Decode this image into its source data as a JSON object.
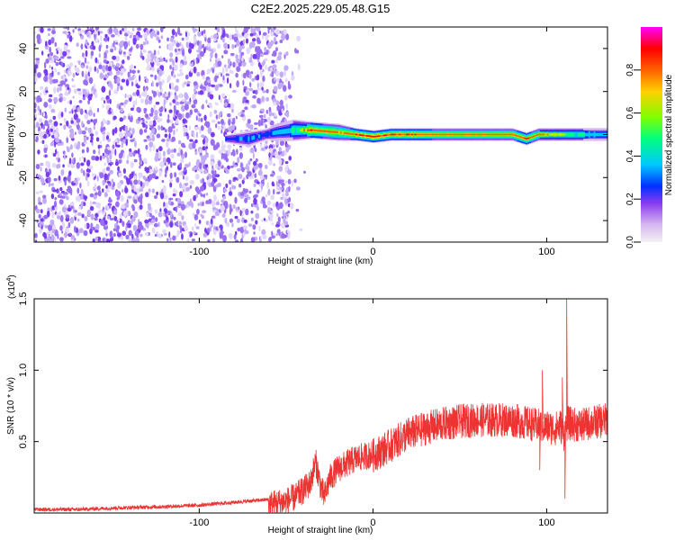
{
  "title": "C2E2.2025.229.05.48.G15",
  "colors": {
    "speckle": [
      "#7a3cf0",
      "#9a6ff2",
      "#c3acf6",
      "#e3d8fb"
    ],
    "signal_line": "#ee3333",
    "colormap": [
      "#f2f2f2",
      "#d6b8f0",
      "#8a3cf0",
      "#0030ff",
      "#00c8ff",
      "#00ff80",
      "#80ff00",
      "#ffd000",
      "#ff6000",
      "#ff0000",
      "#ff00ff"
    ]
  },
  "chart_data": [
    {
      "type": "heatmap",
      "title": "C2E2.2025.229.05.48.G15",
      "xlabel": "Height of straight line (km)",
      "ylabel": "Frequency (Hz)",
      "xlim": [
        -195,
        135
      ],
      "ylim": [
        -50,
        50
      ],
      "x_ticks": [
        -100,
        0,
        100
      ],
      "x_tick_labels": [
        "-100",
        "0",
        "100"
      ],
      "y_ticks": [
        -40,
        -20,
        0,
        20,
        40
      ],
      "y_tick_labels": [
        "-40",
        "-20",
        "0",
        "20",
        "40"
      ],
      "noise_region_x": [
        -195,
        -48
      ],
      "signal_band": {
        "x": [
          -85,
          -72,
          -62,
          -56,
          -46,
          -35,
          -20,
          -10,
          0,
          10,
          20,
          40,
          60,
          80,
          88,
          95,
          105,
          120,
          135
        ],
        "center_hz": [
          -2,
          -2,
          0,
          1,
          2,
          2,
          1,
          0,
          -1,
          0,
          0,
          0,
          0,
          0,
          -2,
          0,
          0,
          0,
          0
        ],
        "halfwidth_hz": [
          2,
          4,
          3,
          4,
          5,
          4,
          4,
          3,
          3,
          3,
          3,
          3,
          3,
          3,
          3,
          3,
          3,
          3,
          3
        ],
        "peak_amplitude": [
          0.4,
          0.45,
          0.4,
          0.5,
          0.6,
          0.9,
          0.8,
          0.9,
          0.95,
          0.9,
          0.9,
          0.85,
          0.85,
          0.85,
          0.9,
          0.8,
          0.75,
          0.6,
          0.5
        ]
      },
      "colorbar": {
        "label": "Normalized spectral amplitude",
        "range": [
          0.0,
          1.0
        ],
        "ticks": [
          0.0,
          0.2,
          0.4,
          0.6,
          0.8
        ],
        "tick_labels": [
          "0.0",
          "0.2",
          "0.4",
          "0.6",
          "0.8"
        ]
      }
    },
    {
      "type": "line",
      "xlabel": "Height of straight line (km)",
      "ylabel": "SNR (10 * v/v)",
      "y_multiplier": "(x10",
      "y_multiplier_exp": "4",
      "y_multiplier_close": ")",
      "xlim": [
        -195,
        135
      ],
      "ylim": [
        0,
        1.5
      ],
      "x_ticks": [
        -100,
        0,
        100
      ],
      "x_tick_labels": [
        "-100",
        "0",
        "100"
      ],
      "y_ticks": [
        0.5,
        1.0,
        1.5
      ],
      "y_tick_labels": [
        "0.5",
        "1.0",
        "1.5"
      ],
      "series": [
        {
          "x": [
            -195,
            -170,
            -150,
            -120,
            -100,
            -80,
            -60,
            -50,
            -45,
            -40,
            -36,
            -33,
            -30,
            -28,
            -25,
            -20,
            -10,
            0,
            10,
            20,
            30,
            40,
            50,
            60,
            70,
            80,
            88,
            95,
            100,
            105,
            108,
            110,
            112,
            115,
            120,
            125,
            135
          ],
          "y": [
            0.03,
            0.03,
            0.04,
            0.05,
            0.06,
            0.08,
            0.1,
            0.12,
            0.15,
            0.2,
            0.25,
            0.4,
            0.22,
            0.15,
            0.28,
            0.35,
            0.42,
            0.45,
            0.52,
            0.6,
            0.64,
            0.67,
            0.69,
            0.7,
            0.7,
            0.7,
            0.68,
            0.66,
            0.65,
            0.64,
            0.66,
            0.6,
            0.68,
            0.67,
            0.66,
            0.68,
            0.7
          ]
        }
      ],
      "spikes": [
        {
          "x": 96,
          "y": 0.3
        },
        {
          "x": 97.5,
          "y": 1.0
        },
        {
          "x": 109,
          "y": 0.95
        },
        {
          "x": 110.5,
          "y": 0.1
        },
        {
          "x": 111.5,
          "y": 1.5
        },
        {
          "x": 113,
          "y": 0.55
        }
      ]
    }
  ]
}
